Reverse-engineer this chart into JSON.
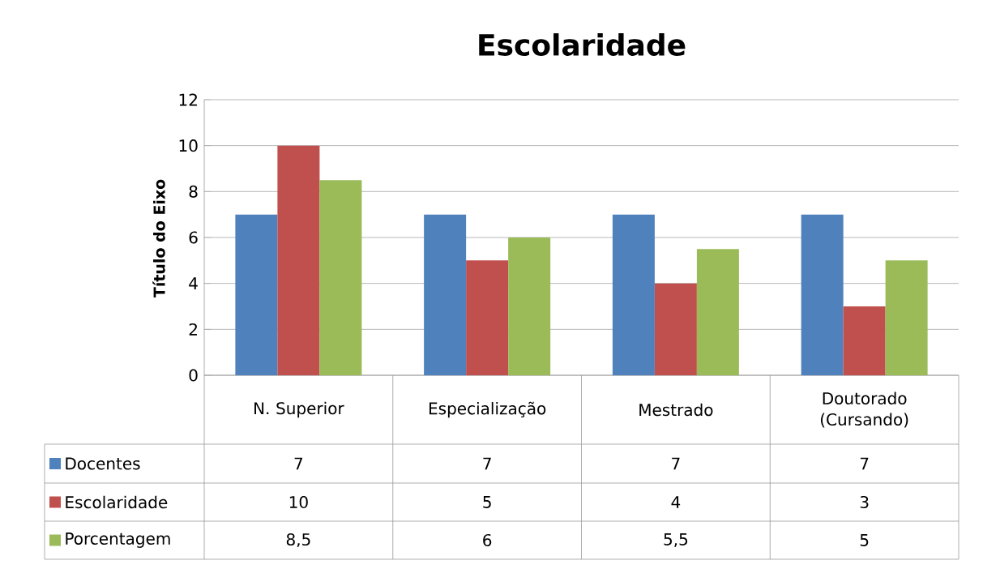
{
  "chart_data": {
    "type": "bar",
    "title": "Escolaridade",
    "ylabel": "Título do Eixo",
    "categories": [
      "N. Superior",
      "Especialização",
      "Mestrado",
      "Doutorado (Cursando)"
    ],
    "series": [
      {
        "name": "Docentes",
        "color": "#4f81bd",
        "values": [
          7,
          7,
          7,
          7
        ],
        "value_labels": [
          "7",
          "7",
          "7",
          "7"
        ]
      },
      {
        "name": "Escolaridade",
        "color": "#c0504d",
        "values": [
          10,
          5,
          4,
          3
        ],
        "value_labels": [
          "10",
          "5",
          "4",
          "3"
        ]
      },
      {
        "name": "Porcentagem",
        "color": "#9bbb59",
        "values": [
          8.5,
          6,
          5.5,
          5
        ],
        "value_labels": [
          "8,5",
          "6",
          "5,5",
          "5"
        ]
      }
    ],
    "ylim": [
      0,
      12
    ],
    "yticks": [
      0,
      2,
      4,
      6,
      8,
      10,
      12
    ],
    "grid": "y",
    "legend": "bottom left"
  }
}
